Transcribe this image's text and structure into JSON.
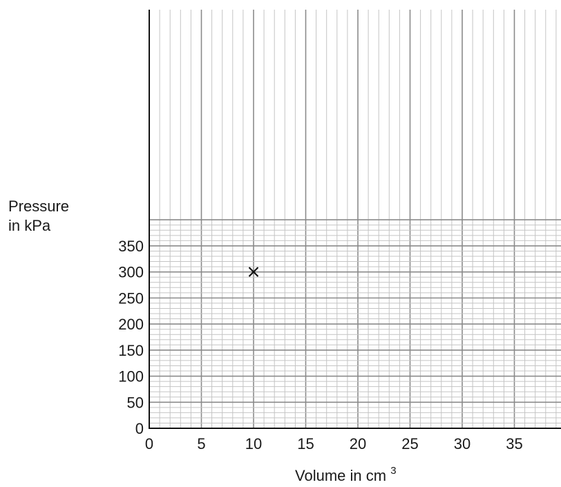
{
  "chart_data": {
    "type": "scatter",
    "title": "",
    "xlabel": "Volume in cm",
    "xlabel_superscript": "3",
    "ylabel_lines": [
      "Pressure",
      "in kPa"
    ],
    "xlim": [
      0,
      40
    ],
    "ylim": [
      0,
      400
    ],
    "x_ticks": [
      0,
      5,
      10,
      15,
      20,
      25,
      30,
      35
    ],
    "y_ticks": [
      0,
      50,
      100,
      150,
      200,
      250,
      300,
      350
    ],
    "x_minor_step": 1,
    "y_minor_step": 10,
    "grid": true,
    "points": [
      {
        "x": 10,
        "y": 300
      }
    ],
    "marker": "x",
    "colors": {
      "minor_grid": "#c4c4c4",
      "major_grid": "#8a8a8a",
      "axis": "#111111"
    }
  }
}
